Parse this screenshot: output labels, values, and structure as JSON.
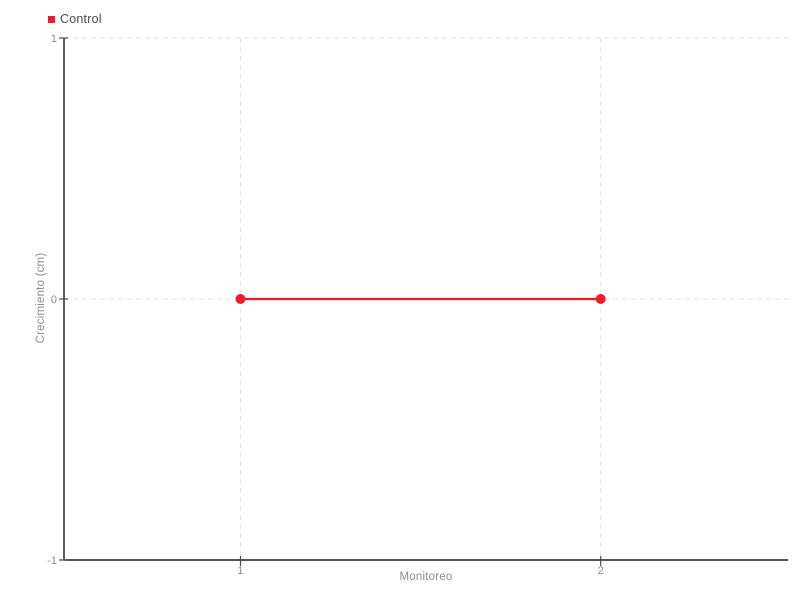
{
  "chart_data": {
    "type": "line",
    "title": "",
    "xlabel": "Monitoreo",
    "ylabel": "Crecimiento (cm)",
    "xlim": [
      0.51,
      2.52
    ],
    "ylim": [
      -1,
      1
    ],
    "xticks": [
      1,
      2
    ],
    "yticks": [
      1,
      0,
      -1
    ],
    "grid": true,
    "grid_style": "dashed",
    "legend_position": "top-left",
    "series": [
      {
        "name": "Control",
        "color": "#ec1c2d",
        "marker": "circle",
        "points": [
          {
            "x": 1,
            "y": 0
          },
          {
            "x": 2,
            "y": 0
          }
        ]
      }
    ]
  },
  "colors": {
    "background": "#ffffff",
    "axis": "#1a1a1a",
    "grid": "#e3e3e3",
    "tick_mark": "#4d4d4d",
    "tick_label": "#8c8c8c",
    "axis_title": "#8c8c8c",
    "legend_text": "#4a4a4a"
  }
}
